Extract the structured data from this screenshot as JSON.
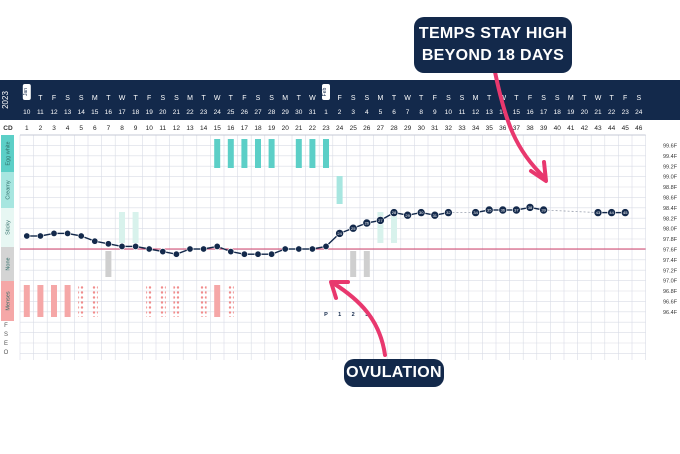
{
  "chart_data": {
    "type": "line",
    "title": "",
    "header": {
      "year": "2023",
      "weekdays": [
        "W",
        "T",
        "F",
        "S",
        "S",
        "M",
        "T",
        "W",
        "T",
        "F",
        "S",
        "S",
        "M",
        "T",
        "W",
        "T",
        "F",
        "S",
        "S",
        "M",
        "T",
        "W",
        "T",
        "F",
        "S",
        "S",
        "M",
        "T",
        "W",
        "T",
        "F",
        "S",
        "S",
        "M",
        "T",
        "W",
        "T",
        "F",
        "S",
        "S",
        "M",
        "T",
        "W",
        "T",
        "F",
        "S"
      ],
      "dates": [
        "10",
        "11",
        "12",
        "13",
        "14",
        "15",
        "16",
        "17",
        "18",
        "19",
        "20",
        "21",
        "22",
        "23",
        "24",
        "25",
        "26",
        "27",
        "28",
        "29",
        "30",
        "31",
        "1",
        "2",
        "3",
        "4",
        "5",
        "6",
        "7",
        "8",
        "9",
        "10",
        "11",
        "12",
        "13",
        "14",
        "15",
        "16",
        "17",
        "18",
        "19",
        "20",
        "21",
        "22",
        "23",
        "24"
      ],
      "month_markers": [
        {
          "index": 0,
          "label": "Jan"
        },
        {
          "index": 22,
          "label": "Feb"
        }
      ],
      "cd_label": "CD",
      "cycle_days": [
        1,
        2,
        3,
        4,
        5,
        6,
        7,
        8,
        9,
        10,
        11,
        12,
        13,
        14,
        15,
        16,
        17,
        18,
        19,
        20,
        21,
        22,
        23,
        24,
        25,
        26,
        27,
        28,
        29,
        30,
        31,
        32,
        33,
        34,
        35,
        36,
        37,
        38,
        39,
        40,
        41,
        42,
        43,
        44,
        45,
        46
      ]
    },
    "ylabels": [
      "99.6F",
      "99.4F",
      "99.2F",
      "99.0F",
      "98.8F",
      "98.6F",
      "98.4F",
      "98.2F",
      "98.0F",
      "97.8F",
      "97.6F",
      "97.4F",
      "97.2F",
      "97.0F",
      "96.8F",
      "96.6F",
      "96.4F"
    ],
    "ylim": [
      96.4,
      99.6
    ],
    "coverline": 97.6,
    "fluid_categories": [
      "Egg white",
      "Creamy",
      "Sticky",
      "None",
      "Menses"
    ],
    "fluid_colors": [
      "#5ccfc7",
      "#a7e6e0",
      "#e7f7f3",
      "#d4d4d4",
      "#f5a7a7"
    ],
    "extra_rows": [
      "F",
      "S",
      "E",
      "O"
    ],
    "temps": [
      {
        "cd": 1,
        "t": 97.85
      },
      {
        "cd": 2,
        "t": 97.85
      },
      {
        "cd": 3,
        "t": 97.9
      },
      {
        "cd": 4,
        "t": 97.9
      },
      {
        "cd": 5,
        "t": 97.85
      },
      {
        "cd": 6,
        "t": 97.75
      },
      {
        "cd": 7,
        "t": 97.7
      },
      {
        "cd": 8,
        "t": 97.65
      },
      {
        "cd": 9,
        "t": 97.65
      },
      {
        "cd": 10,
        "t": 97.6
      },
      {
        "cd": 11,
        "t": 97.55
      },
      {
        "cd": 12,
        "t": 97.5
      },
      {
        "cd": 13,
        "t": 97.6
      },
      {
        "cd": 14,
        "t": 97.6
      },
      {
        "cd": 15,
        "t": 97.65
      },
      {
        "cd": 16,
        "t": 97.55
      },
      {
        "cd": 17,
        "t": 97.5
      },
      {
        "cd": 18,
        "t": 97.5
      },
      {
        "cd": 19,
        "t": 97.5
      },
      {
        "cd": 20,
        "t": 97.6
      },
      {
        "cd": 21,
        "t": 97.6
      },
      {
        "cd": 22,
        "t": 97.6
      },
      {
        "cd": 23,
        "t": 97.65
      },
      {
        "cd": 24,
        "t": 97.9
      },
      {
        "cd": 25,
        "t": 98.0
      },
      {
        "cd": 26,
        "t": 98.1
      },
      {
        "cd": 27,
        "t": 98.15
      },
      {
        "cd": 28,
        "t": 98.3
      },
      {
        "cd": 29,
        "t": 98.25
      },
      {
        "cd": 30,
        "t": 98.3
      },
      {
        "cd": 31,
        "t": 98.25
      },
      {
        "cd": 32,
        "t": 98.3
      },
      {
        "cd": 34,
        "t": 98.3
      },
      {
        "cd": 35,
        "t": 98.35
      },
      {
        "cd": 36,
        "t": 98.35
      },
      {
        "cd": 37,
        "t": 98.35
      },
      {
        "cd": 38,
        "t": 98.4
      },
      {
        "cd": 39,
        "t": 98.35
      },
      {
        "cd": 43,
        "t": 98.3
      },
      {
        "cd": 44,
        "t": 98.3
      },
      {
        "cd": 45,
        "t": 98.3
      }
    ],
    "dashed_gaps": [
      [
        32,
        34
      ],
      [
        39,
        43
      ]
    ],
    "highlighted_cds": [
      24,
      25,
      26,
      27,
      28,
      29,
      30,
      31,
      32,
      34,
      35,
      36,
      37,
      38,
      39,
      43,
      44,
      45
    ],
    "fluid_bars": [
      {
        "cd": 1,
        "cat": "Menses",
        "style": "solid"
      },
      {
        "cd": 2,
        "cat": "Menses",
        "style": "solid"
      },
      {
        "cd": 3,
        "cat": "Menses",
        "style": "solid"
      },
      {
        "cd": 4,
        "cat": "Menses",
        "style": "solid"
      },
      {
        "cd": 5,
        "cat": "Menses",
        "style": "dotted"
      },
      {
        "cd": 6,
        "cat": "Menses",
        "style": "dotted"
      },
      {
        "cd": 7,
        "cat": "None",
        "style": "solid"
      },
      {
        "cd": 8,
        "cat": "Sticky",
        "style": "light"
      },
      {
        "cd": 9,
        "cat": "Sticky",
        "style": "light"
      },
      {
        "cd": 10,
        "cat": "Menses",
        "style": "dotted"
      },
      {
        "cd": 11,
        "cat": "Menses",
        "style": "dotted"
      },
      {
        "cd": 12,
        "cat": "Menses",
        "style": "dotted"
      },
      {
        "cd": 14,
        "cat": "Menses",
        "style": "dotted"
      },
      {
        "cd": 15,
        "cat": "Menses",
        "style": "solid"
      },
      {
        "cd": 16,
        "cat": "Menses",
        "style": "dotted"
      },
      {
        "cd": 15,
        "cat": "Egg white",
        "style": "solid"
      },
      {
        "cd": 16,
        "cat": "Egg white",
        "style": "solid"
      },
      {
        "cd": 17,
        "cat": "Egg white",
        "style": "solid"
      },
      {
        "cd": 18,
        "cat": "Egg white",
        "style": "solid"
      },
      {
        "cd": 19,
        "cat": "Egg white",
        "style": "solid"
      },
      {
        "cd": 21,
        "cat": "Egg white",
        "style": "solid"
      },
      {
        "cd": 22,
        "cat": "Egg white",
        "style": "solid"
      },
      {
        "cd": 23,
        "cat": "Egg white",
        "style": "solid"
      },
      {
        "cd": 24,
        "cat": "Creamy",
        "style": "solid"
      },
      {
        "cd": 25,
        "cat": "None",
        "style": "solid"
      },
      {
        "cd": 26,
        "cat": "None",
        "style": "solid"
      },
      {
        "cd": 27,
        "cat": "Sticky",
        "style": "light"
      },
      {
        "cd": 28,
        "cat": "Sticky",
        "style": "light"
      }
    ],
    "ovulation_labels": [
      {
        "cd": 23,
        "label": "P"
      },
      {
        "cd": 24,
        "label": "1"
      },
      {
        "cd": 25,
        "label": "2"
      },
      {
        "cd": 26,
        "label": "3"
      }
    ]
  },
  "annotations": {
    "temps_high": [
      "TEMPS STAY HIGH",
      "BEYOND 18 DAYS"
    ],
    "ovulation": "OVULATION"
  },
  "colors": {
    "header_bg": "#13294b",
    "line": "#13294b",
    "coverline": "#d0406a",
    "arrow": "#e8386e",
    "grid": "#d9dce6"
  }
}
